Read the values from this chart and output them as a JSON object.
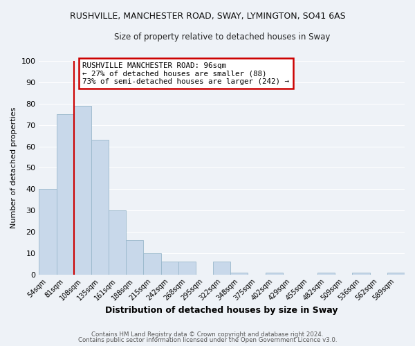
{
  "title1": "RUSHVILLE, MANCHESTER ROAD, SWAY, LYMINGTON, SO41 6AS",
  "title2": "Size of property relative to detached houses in Sway",
  "xlabel": "Distribution of detached houses by size in Sway",
  "ylabel": "Number of detached properties",
  "bar_labels": [
    "54sqm",
    "81sqm",
    "108sqm",
    "135sqm",
    "161sqm",
    "188sqm",
    "215sqm",
    "242sqm",
    "268sqm",
    "295sqm",
    "322sqm",
    "348sqm",
    "375sqm",
    "402sqm",
    "429sqm",
    "455sqm",
    "482sqm",
    "509sqm",
    "536sqm",
    "562sqm",
    "589sqm"
  ],
  "bar_values": [
    40,
    75,
    79,
    63,
    30,
    16,
    10,
    6,
    6,
    0,
    6,
    1,
    0,
    1,
    0,
    0,
    1,
    0,
    1,
    0,
    1
  ],
  "bar_color": "#c8d8ea",
  "bar_edge_color": "#9ab8cc",
  "vline_color": "#cc0000",
  "ylim": [
    0,
    100
  ],
  "yticks": [
    0,
    10,
    20,
    30,
    40,
    50,
    60,
    70,
    80,
    90,
    100
  ],
  "annotation_title": "RUSHVILLE MANCHESTER ROAD: 96sqm",
  "annotation_line1": "← 27% of detached houses are smaller (88)",
  "annotation_line2": "73% of semi-detached houses are larger (242) →",
  "annotation_box_color": "#cc0000",
  "footer1": "Contains HM Land Registry data © Crown copyright and database right 2024.",
  "footer2": "Contains public sector information licensed under the Open Government Licence v3.0.",
  "background_color": "#eef2f7",
  "grid_color": "#ffffff"
}
